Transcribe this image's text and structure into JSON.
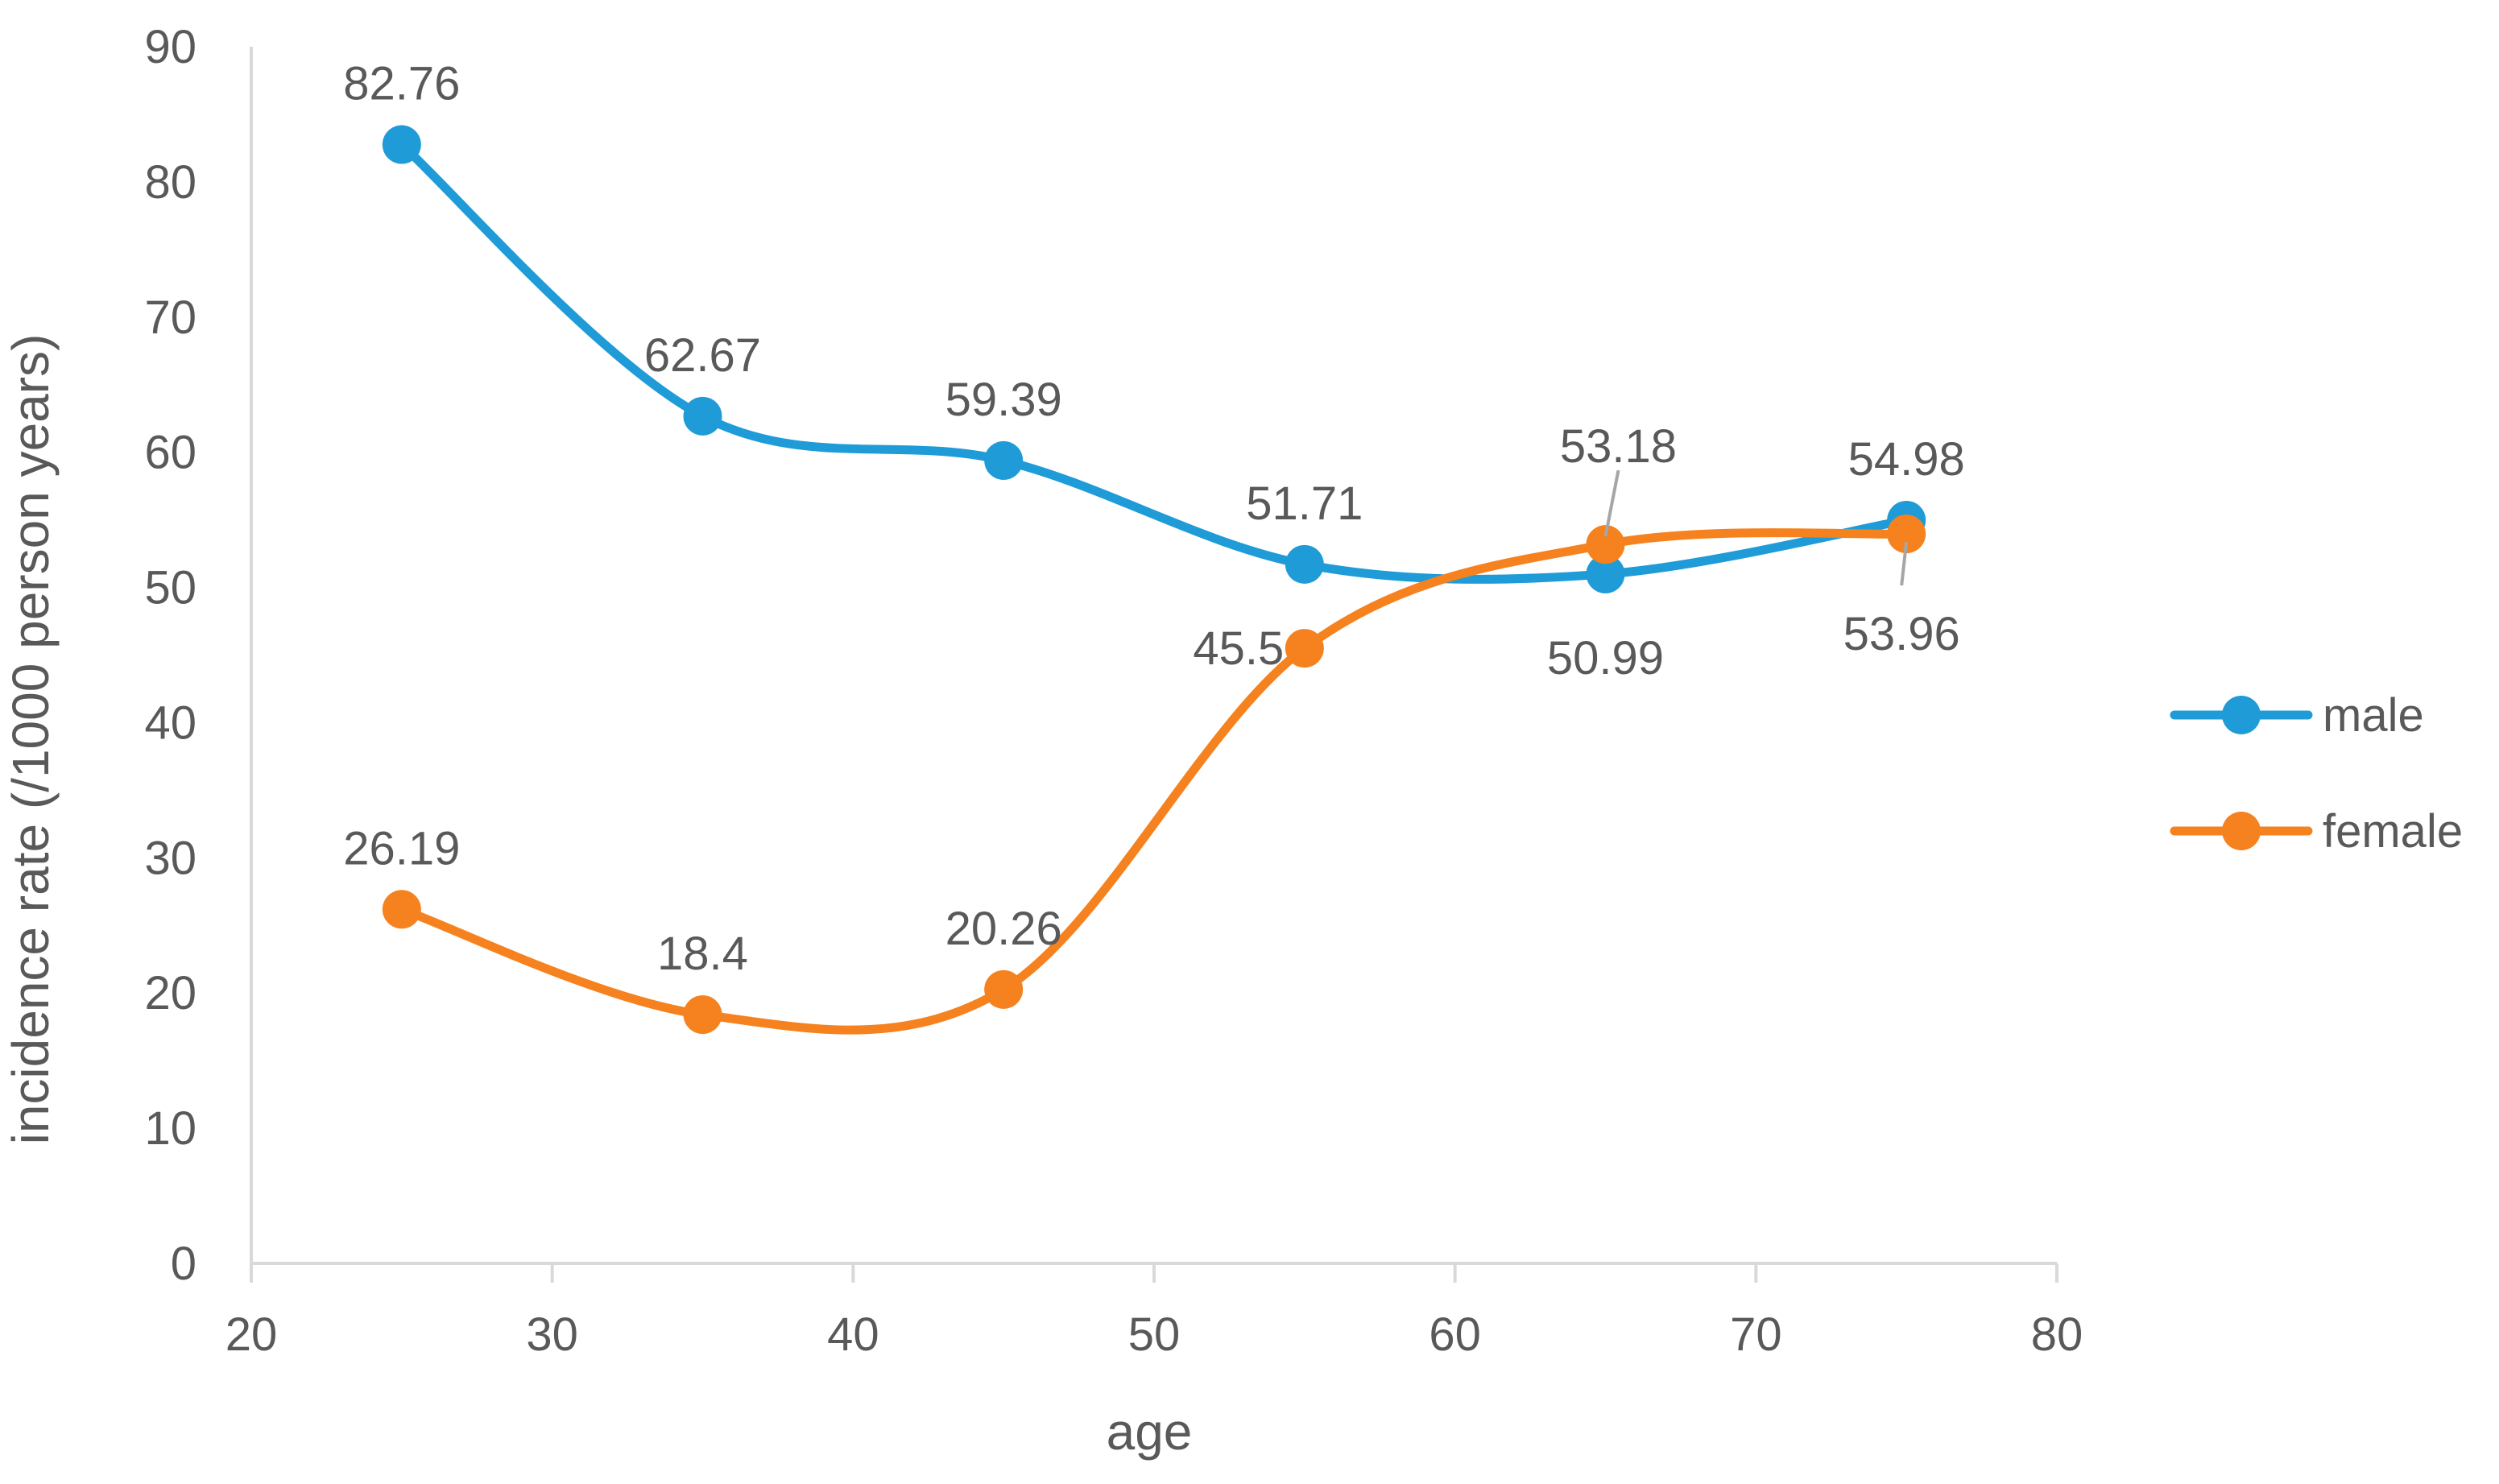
{
  "chart_data": {
    "type": "scatter",
    "title": "",
    "xlabel": "age",
    "ylabel": "incidence rate (/1000 person years)",
    "xlim": [
      20,
      80
    ],
    "ylim": [
      0,
      90
    ],
    "x_ticks": [
      20,
      30,
      40,
      50,
      60,
      70,
      80
    ],
    "y_ticks": [
      0,
      10,
      20,
      30,
      40,
      50,
      60,
      70,
      80,
      90
    ],
    "x_tick_labels": [
      "20",
      "30",
      "40",
      "50",
      "60",
      "70",
      "80"
    ],
    "y_tick_labels": [
      "0",
      "10",
      "20",
      "30",
      "40",
      "50",
      "60",
      "70",
      "80",
      "90"
    ],
    "smoothed_lines": true,
    "grid": false,
    "legend_position": "right",
    "series": [
      {
        "name": "male",
        "color": "#1F9BD7",
        "points": [
          {
            "x": 25,
            "y": 82.76,
            "label": "82.76"
          },
          {
            "x": 35,
            "y": 62.67,
            "label": "62.67"
          },
          {
            "x": 45,
            "y": 59.39,
            "label": "59.39"
          },
          {
            "x": 55,
            "y": 51.71,
            "label": "51.71"
          },
          {
            "x": 65,
            "y": 50.99,
            "label": "50.99"
          },
          {
            "x": 75,
            "y": 54.98,
            "label": "54.98"
          }
        ]
      },
      {
        "name": "female",
        "color": "#F5821F",
        "points": [
          {
            "x": 25,
            "y": 26.19,
            "label": "26.19"
          },
          {
            "x": 35,
            "y": 18.4,
            "label": "18.4"
          },
          {
            "x": 45,
            "y": 20.26,
            "label": "20.26"
          },
          {
            "x": 55,
            "y": 45.5,
            "label": "45.5"
          },
          {
            "x": 65,
            "y": 53.18,
            "label": "53.18"
          },
          {
            "x": 75,
            "y": 53.96,
            "label": "53.96"
          }
        ]
      }
    ]
  },
  "colors": {
    "axis": "#D9D9D9",
    "text": "#595959"
  }
}
